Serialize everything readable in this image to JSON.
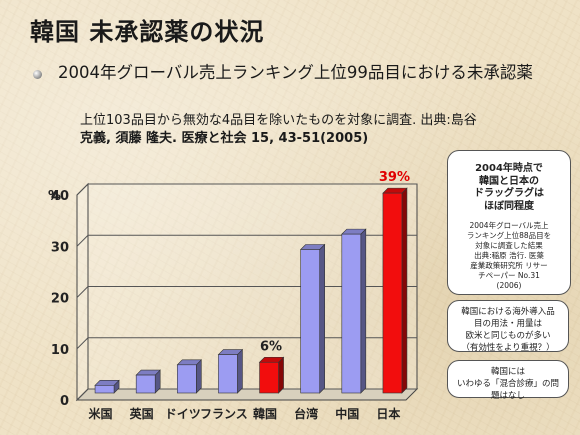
{
  "slide": {
    "title": "韓国 未承認薬の状況",
    "bullet": "2004年グローバル売上ランキング上位99品目における未承認薬",
    "source_line1": "上位103品目から無効な4品目を除いたものを対象に調査. 出典:島谷",
    "source_line2": "克義, 須藤 隆夫. 医療と社会 15, 43-51(2005)"
  },
  "callouts": {
    "main_head": [
      "2004年時点で",
      "韓国と日本の",
      "ドラッグラグは",
      "ほぼ同程度"
    ],
    "main_note": [
      "2004年グローバル売上",
      "ランキング上位88品目を",
      "対象に調査した結果",
      "出典:稲原 浩行. 医薬",
      "産業政策研究所 リサー",
      "チペーパー No.31",
      "(2006)"
    ],
    "middle": [
      "韓国における海外導入品",
      "目の用法・用量は",
      "欧米と同じものが多い",
      "（有効性をより重視？）"
    ],
    "bottom": [
      "韓国には",
      "いわゆる「混合診療」の問",
      "題はなし"
    ]
  },
  "chart_data": {
    "type": "bar",
    "ylabel": "%",
    "ylim": [
      0,
      40
    ],
    "yticks": [
      0,
      10,
      20,
      30,
      40
    ],
    "categories": [
      "米国",
      "英国",
      "ドイツ",
      "フランス",
      "韓国",
      "台湾",
      "中国",
      "日本"
    ],
    "values": [
      1.5,
      3.5,
      5.5,
      7.5,
      6,
      28,
      31,
      39
    ],
    "value_labels": [
      "",
      "",
      "",
      "",
      "6%",
      "",
      "",
      "39%"
    ],
    "bar_colors": [
      "#9c9cf2",
      "#9c9cf2",
      "#9c9cf2",
      "#9c9cf2",
      "#f20d0d",
      "#9c9cf2",
      "#9c9cf2",
      "#f20d0d"
    ],
    "grid": true
  }
}
